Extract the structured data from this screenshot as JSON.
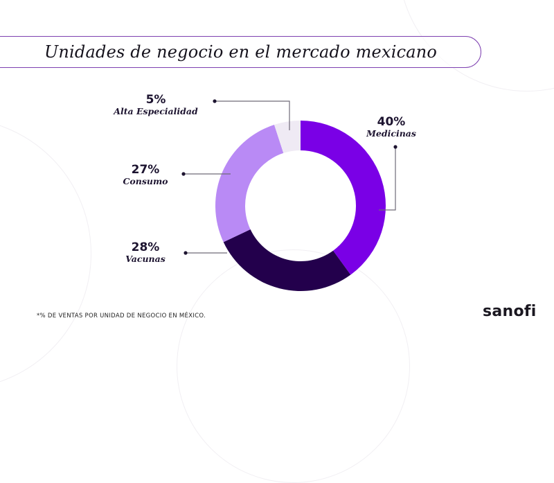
{
  "title": "Unidades de negocio en el mercado mexicano",
  "footnote": "*% DE VENTAS POR UNIDAD DE NEGOCIO EN MÉXICO.",
  "brand": "sanofi",
  "colors": {
    "accent": "#7a00e6",
    "dark": "#23004c",
    "light": "#b98af5",
    "pale": "#efeaf4",
    "pill_border": "#7d3fb0",
    "text": "#1d1430"
  },
  "chart_data": {
    "type": "pie",
    "variant": "donut",
    "title": "Unidades de negocio en el mercado mexicano",
    "unit": "%",
    "direction": "clockwise from top",
    "slices": [
      {
        "name": "Medicinas",
        "value": 40,
        "label": "40%",
        "color": "#7a00e6"
      },
      {
        "name": "Vacunas",
        "value": 28,
        "label": "28%",
        "color": "#23004c"
      },
      {
        "name": "Consumo",
        "value": 27,
        "label": "27%",
        "color": "#b98af5"
      },
      {
        "name": "Alta Especialidad",
        "value": 5,
        "label": "5%",
        "color": "#efeaf4"
      }
    ],
    "note": "*% DE VENTAS POR UNIDAD DE NEGOCIO EN MÉXICO."
  }
}
